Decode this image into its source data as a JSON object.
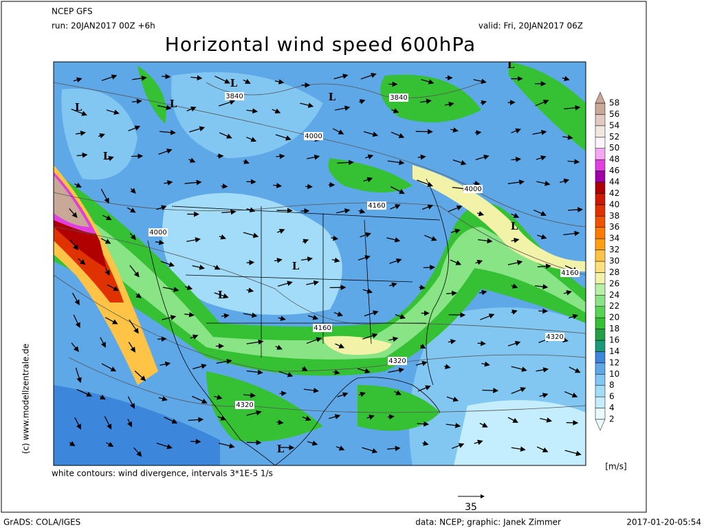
{
  "header": {
    "model": "NCEP GFS",
    "run": "run: 20JAN2017 00Z +6h",
    "valid": "valid: Fri, 20JAN2017 06Z",
    "title": "Horizontal wind speed 600hPa"
  },
  "map": {
    "labels": [
      "3840",
      "3840",
      "4000",
      "4000",
      "4160",
      "4000",
      "4160",
      "4160",
      "4320",
      "4320",
      "4320"
    ],
    "lows": [
      "L",
      "L",
      "L",
      "L",
      "L",
      "L",
      "L",
      "L",
      "L",
      "L"
    ]
  },
  "colorbar": {
    "labels": [
      2,
      4,
      6,
      8,
      10,
      12,
      14,
      16,
      18,
      20,
      22,
      24,
      26,
      28,
      30,
      32,
      34,
      36,
      38,
      40,
      42,
      44,
      46,
      48,
      50,
      52,
      54,
      56,
      58
    ],
    "colors": [
      "#e8fbff",
      "#c4eefd",
      "#a2dcf8",
      "#82c6f2",
      "#5ea8e8",
      "#3c86dc",
      "#1a9a78",
      "#22a046",
      "#36c034",
      "#58d454",
      "#88e484",
      "#b8f0a8",
      "#f2f2a8",
      "#ffe07e",
      "#ffc446",
      "#ffa010",
      "#ff7a00",
      "#f05400",
      "#e03200",
      "#cc1a00",
      "#b00000",
      "#a000a8",
      "#e040e0",
      "#f4a8f4",
      "#fff4fc",
      "#f2e8e2",
      "#e2cac2",
      "#caa898"
    ],
    "unit": "[m/s]"
  },
  "footer": {
    "divergence": "white contours: wind divergence, intervals 3*1E-5 1/s",
    "copyright": "(c) www.modellzentrale.de",
    "ref_vector": "35",
    "software": "GrADS: COLA/IGES",
    "credits": "data: NCEP; graphic: Janek Zimmer",
    "timestamp": "2017-01-20-05:54"
  }
}
